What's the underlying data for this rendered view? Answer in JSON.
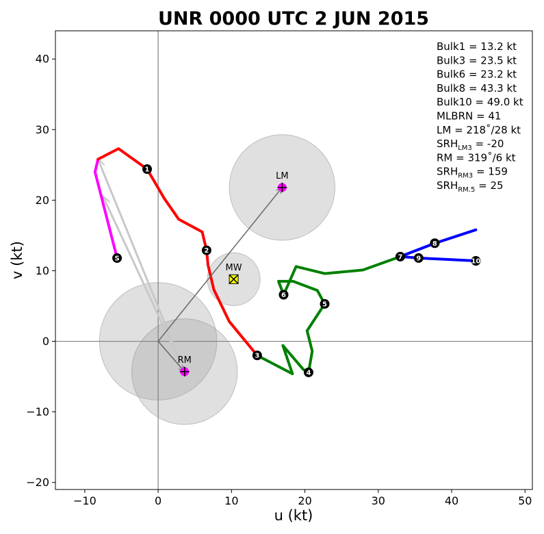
{
  "chart_data": {
    "type": "line",
    "title": "UNR 0000 UTC 2 JUN 2015",
    "xlabel": "u (kt)",
    "ylabel": "v (kt)",
    "xlim": [
      -14,
      51
    ],
    "ylim": [
      -21,
      44
    ],
    "xticks": [
      -10,
      0,
      10,
      20,
      30,
      40,
      50
    ],
    "yticks": [
      -20,
      -10,
      0,
      10,
      20,
      30,
      40
    ],
    "xtick_labels": [
      "−10",
      "0",
      "10",
      "20",
      "30",
      "40",
      "50"
    ],
    "ytick_labels": [
      "−20",
      "−10",
      "0",
      "10",
      "20",
      "30",
      "40"
    ],
    "grid": false,
    "series": [
      {
        "color": "#ff00ff",
        "points": [
          [
            -5.6,
            11.8
          ],
          [
            -8.6,
            24.0
          ],
          [
            -8.2,
            25.8
          ]
        ]
      },
      {
        "color": "#ff0000",
        "points": [
          [
            -8.2,
            25.8
          ],
          [
            -5.4,
            27.3
          ],
          [
            -1.5,
            24.4
          ],
          [
            0.8,
            20.3
          ],
          [
            2.8,
            17.3
          ],
          [
            6.0,
            15.5
          ],
          [
            6.6,
            12.9
          ],
          [
            6.8,
            10.8
          ],
          [
            7.6,
            7.3
          ],
          [
            9.7,
            2.8
          ],
          [
            13.5,
            -2.0
          ]
        ]
      },
      {
        "color": "#008000",
        "points": [
          [
            13.5,
            -2.0
          ],
          [
            18.3,
            -4.6
          ],
          [
            17.0,
            -0.6
          ],
          [
            19.8,
            -4.0
          ],
          [
            20.5,
            -4.4
          ],
          [
            21.0,
            -1.4
          ],
          [
            20.3,
            1.5
          ],
          [
            22.7,
            5.3
          ],
          [
            21.7,
            7.2
          ],
          [
            18.4,
            8.5
          ],
          [
            16.4,
            8.5
          ],
          [
            17.1,
            6.6
          ],
          [
            18.8,
            10.6
          ],
          [
            22.7,
            9.6
          ],
          [
            27.9,
            10.1
          ],
          [
            33.0,
            12.0
          ]
        ]
      },
      {
        "color": "#0000ff",
        "points": [
          [
            33.0,
            12.0
          ],
          [
            35.5,
            11.8
          ],
          [
            43.3,
            11.4
          ],
          [
            35.5,
            11.8
          ],
          [
            33.0,
            12.0
          ],
          [
            37.7,
            13.9
          ],
          [
            43.3,
            15.8
          ]
        ]
      }
    ],
    "height_markers": [
      {
        "label": "S",
        "u": -5.6,
        "v": 11.8
      },
      {
        "label": "1",
        "u": -1.5,
        "v": 24.4
      },
      {
        "label": "2",
        "u": 6.6,
        "v": 12.9
      },
      {
        "label": "3",
        "u": 13.5,
        "v": -2.0
      },
      {
        "label": "4",
        "u": 20.5,
        "v": -4.4
      },
      {
        "label": "5",
        "u": 22.7,
        "v": 5.3
      },
      {
        "label": "6",
        "u": 17.1,
        "v": 6.6
      },
      {
        "label": "7",
        "u": 33.0,
        "v": 12.0
      },
      {
        "label": "8",
        "u": 37.7,
        "v": 13.9
      },
      {
        "label": "9",
        "u": 35.5,
        "v": 11.8
      },
      {
        "label": "10",
        "u": 43.3,
        "v": 11.4
      }
    ],
    "uncertainty_circles": [
      {
        "u": 0.0,
        "v": 0.0,
        "r": 8.0
      },
      {
        "u": 3.6,
        "v": -4.3,
        "r": 7.2
      },
      {
        "u": 16.9,
        "v": 21.8,
        "r": 7.2
      },
      {
        "u": 10.3,
        "v": 8.8,
        "r": 3.6
      }
    ],
    "shear_arrows": [
      {
        "from": [
          0,
          0
        ],
        "to": [
          16.9,
          21.8
        ],
        "color": "#666666"
      },
      {
        "from": [
          0,
          0
        ],
        "to": [
          3.6,
          -4.3
        ],
        "color": "#666666"
      }
    ],
    "grey_arrows": [
      {
        "from": [
          3.6,
          -4.3
        ],
        "to": [
          -8.2,
          25.8
        ],
        "color": "#c8c8c8"
      },
      {
        "from": [
          3.6,
          -4.3
        ],
        "to": [
          -7.5,
          20.5
        ],
        "color": "#c8c8c8"
      }
    ],
    "motion_markers": [
      {
        "label": "LM",
        "u": 16.9,
        "v": 21.8,
        "style": "magenta-plus"
      },
      {
        "label": "RM",
        "u": 3.6,
        "v": -4.3,
        "style": "magenta-plus"
      },
      {
        "label": "MW",
        "u": 10.3,
        "v": 8.8,
        "style": "yellow-x"
      }
    ],
    "stats": [
      {
        "text": "Bulk1 = 13.2 kt",
        "color": "#000000"
      },
      {
        "text": "Bulk3 = 23.5 kt",
        "color": "#000000"
      },
      {
        "text": "Bulk6 = 23.2 kt",
        "color": "#000000"
      },
      {
        "text": "Bulk8 = 43.3 kt",
        "color": "#000000"
      },
      {
        "text": "Bulk10 = 49.0 kt",
        "color": "#000000"
      },
      {
        "text": "MLBRN = 41",
        "color": "#ff0000"
      },
      {
        "text": "LM = 218˚/28 kt",
        "color": "#000000"
      },
      {
        "text": "SRH",
        "sub": "LM3",
        "rest": " = -20",
        "color": "#000000"
      },
      {
        "text": "RM = 319˚/6 kt",
        "color": "#000000"
      },
      {
        "text": "SRH",
        "sub": "RM3",
        "rest": " = 159",
        "color": "#000000"
      },
      {
        "text": "SRH",
        "sub": "RM.5",
        "rest": " = 25",
        "color": "#000000"
      }
    ]
  }
}
